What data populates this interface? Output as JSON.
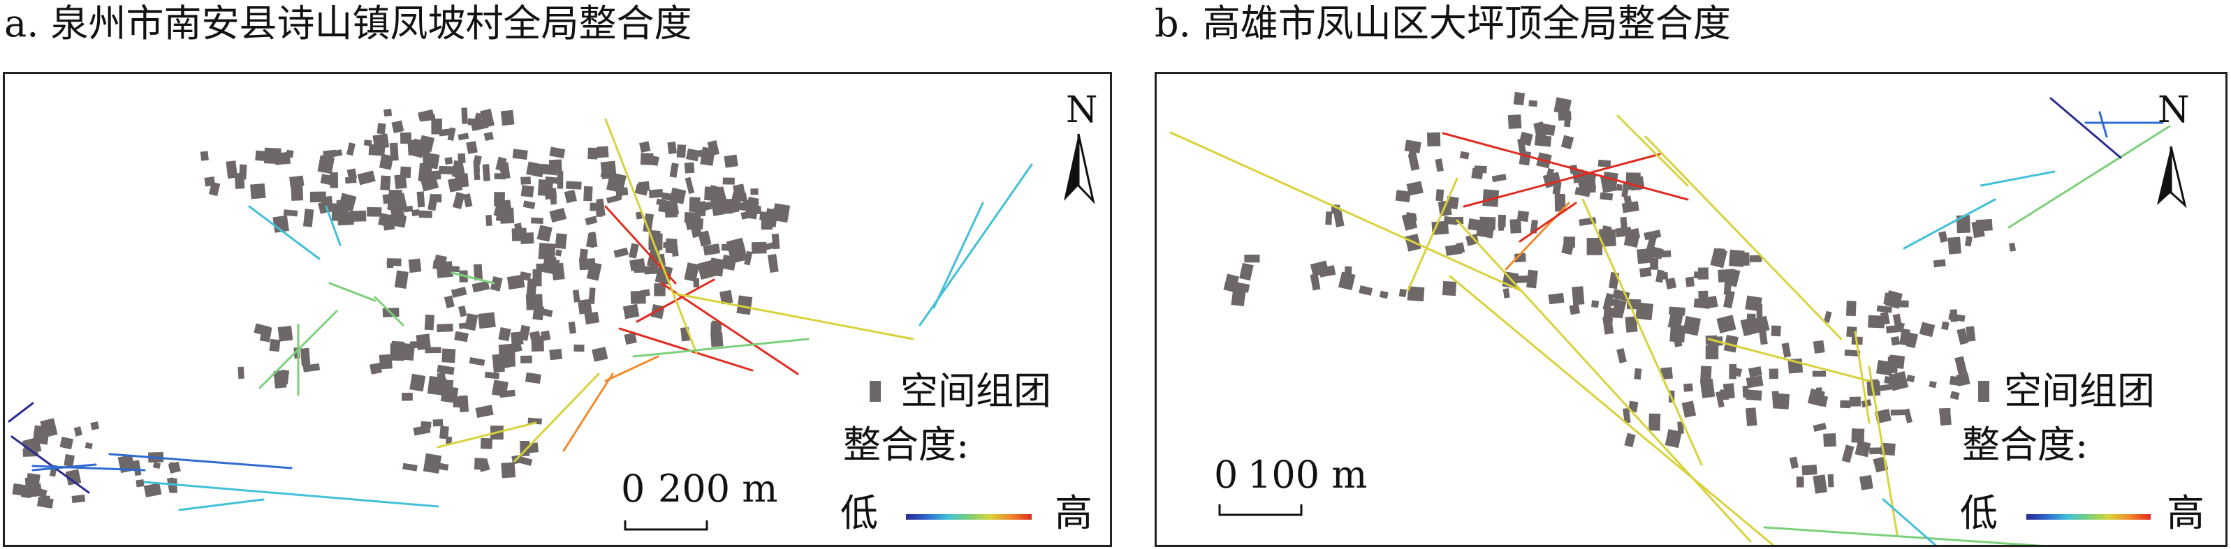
{
  "panels": [
    {
      "id": "a",
      "title": "a. 泉州市南安县诗山镇凤坡村全局整合度",
      "north_label": "N",
      "legend": {
        "cluster_label": "空间组团",
        "integration_label": "整合度:",
        "low_label": "低",
        "high_label": "高"
      },
      "scale": {
        "zero_label": "0",
        "distance_label": "200 m"
      }
    },
    {
      "id": "b",
      "title": "b. 高雄市凤山区大坪顶全局整合度",
      "north_label": "N",
      "legend": {
        "cluster_label": "空间组团",
        "integration_label": "整合度:",
        "low_label": "低",
        "high_label": "高"
      },
      "scale": {
        "zero_label": "0",
        "distance_label": "100 m"
      }
    }
  ],
  "colors": {
    "building": "#6e6767",
    "frame": "#222222",
    "integration_ramp": [
      "#2b2b8f",
      "#2f6ad0",
      "#41c0d8",
      "#7ad07a",
      "#d8d23a",
      "#f08a2a",
      "#e02a20"
    ]
  }
}
